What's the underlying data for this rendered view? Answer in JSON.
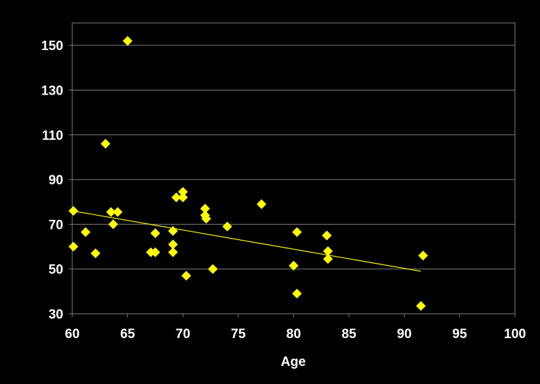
{
  "chart_data": {
    "type": "scatter",
    "title": "",
    "xlabel": "Age",
    "ylabel": "",
    "xlim": [
      60,
      100
    ],
    "ylim": [
      30,
      160
    ],
    "x_ticks": [
      "60",
      "65",
      "70",
      "75",
      "80",
      "85",
      "90",
      "95",
      "100"
    ],
    "y_ticks": [
      "30",
      "50",
      "70",
      "90",
      "110",
      "130",
      "150"
    ],
    "grid": "horizontal",
    "legend": "none",
    "colors": {
      "background": "#000000",
      "plot_border": "#808080",
      "gridline": "#808080",
      "marker": "#ffff00",
      "trendline": "#ffff00",
      "text": "#ffffff"
    },
    "series": [
      {
        "marker": "diamond",
        "points": [
          {
            "x": 60.1,
            "y": 76
          },
          {
            "x": 60.1,
            "y": 60
          },
          {
            "x": 61.2,
            "y": 66.5
          },
          {
            "x": 62.1,
            "y": 57
          },
          {
            "x": 63.0,
            "y": 106
          },
          {
            "x": 63.5,
            "y": 75.5
          },
          {
            "x": 63.7,
            "y": 70
          },
          {
            "x": 64.1,
            "y": 75.5
          },
          {
            "x": 65.0,
            "y": 152
          },
          {
            "x": 67.1,
            "y": 57.5
          },
          {
            "x": 67.5,
            "y": 66
          },
          {
            "x": 67.5,
            "y": 57.5
          },
          {
            "x": 69.1,
            "y": 67
          },
          {
            "x": 69.1,
            "y": 61
          },
          {
            "x": 69.1,
            "y": 57.5
          },
          {
            "x": 69.4,
            "y": 82
          },
          {
            "x": 70.0,
            "y": 84.5
          },
          {
            "x": 70.0,
            "y": 82
          },
          {
            "x": 70.3,
            "y": 47
          },
          {
            "x": 72.0,
            "y": 77
          },
          {
            "x": 72.0,
            "y": 74
          },
          {
            "x": 72.1,
            "y": 72.5
          },
          {
            "x": 72.7,
            "y": 50
          },
          {
            "x": 74.0,
            "y": 69
          },
          {
            "x": 77.1,
            "y": 79
          },
          {
            "x": 80.0,
            "y": 51.5
          },
          {
            "x": 80.3,
            "y": 66.5
          },
          {
            "x": 80.3,
            "y": 39
          },
          {
            "x": 83.0,
            "y": 65
          },
          {
            "x": 83.1,
            "y": 58
          },
          {
            "x": 83.1,
            "y": 54.5
          },
          {
            "x": 91.5,
            "y": 33.5
          },
          {
            "x": 91.7,
            "y": 56
          }
        ]
      }
    ],
    "trendline": {
      "type": "linear",
      "x": [
        60,
        91.5
      ],
      "y": [
        76,
        49
      ]
    }
  }
}
